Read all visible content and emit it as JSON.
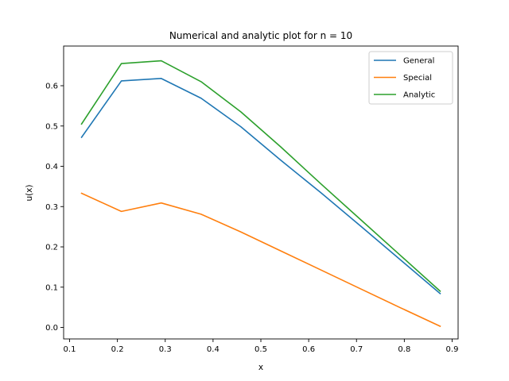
{
  "chart_data": {
    "type": "line",
    "title": "Numerical and analytic plot for n = 10",
    "xlabel": "x",
    "ylabel": "u(x)",
    "xlim": [
      0.0875,
      0.9125
    ],
    "ylim": [
      -0.0285,
      0.6985
    ],
    "xticks": [
      0.1,
      0.2,
      0.3,
      0.4,
      0.5,
      0.6,
      0.7,
      0.8,
      0.9
    ],
    "xtick_labels": [
      "0.1",
      "0.2",
      "0.3",
      "0.4",
      "0.5",
      "0.6",
      "0.7",
      "0.8",
      "0.9"
    ],
    "yticks": [
      0.0,
      0.1,
      0.2,
      0.3,
      0.4,
      0.5,
      0.6
    ],
    "ytick_labels": [
      "0.0",
      "0.1",
      "0.2",
      "0.3",
      "0.4",
      "0.5",
      "0.6"
    ],
    "grid": false,
    "legend_position": "top-right",
    "x": [
      0.125,
      0.2083,
      0.2917,
      0.375,
      0.4583,
      0.5417,
      0.625,
      0.7083,
      0.7917,
      0.875
    ],
    "series": [
      {
        "name": "General",
        "color": "#1f77b4",
        "values": [
          0.472,
          0.612,
          0.618,
          0.569,
          0.498,
          0.415,
          0.335,
          0.252,
          0.168,
          0.084
        ]
      },
      {
        "name": "Special",
        "color": "#ff7f0e",
        "values": [
          0.333,
          0.288,
          0.309,
          0.281,
          0.237,
          0.19,
          0.143,
          0.096,
          0.049,
          0.003
        ]
      },
      {
        "name": "Analytic",
        "color": "#2ca02c",
        "values": [
          0.505,
          0.655,
          0.662,
          0.61,
          0.535,
          0.448,
          0.357,
          0.268,
          0.179,
          0.09
        ]
      }
    ]
  }
}
